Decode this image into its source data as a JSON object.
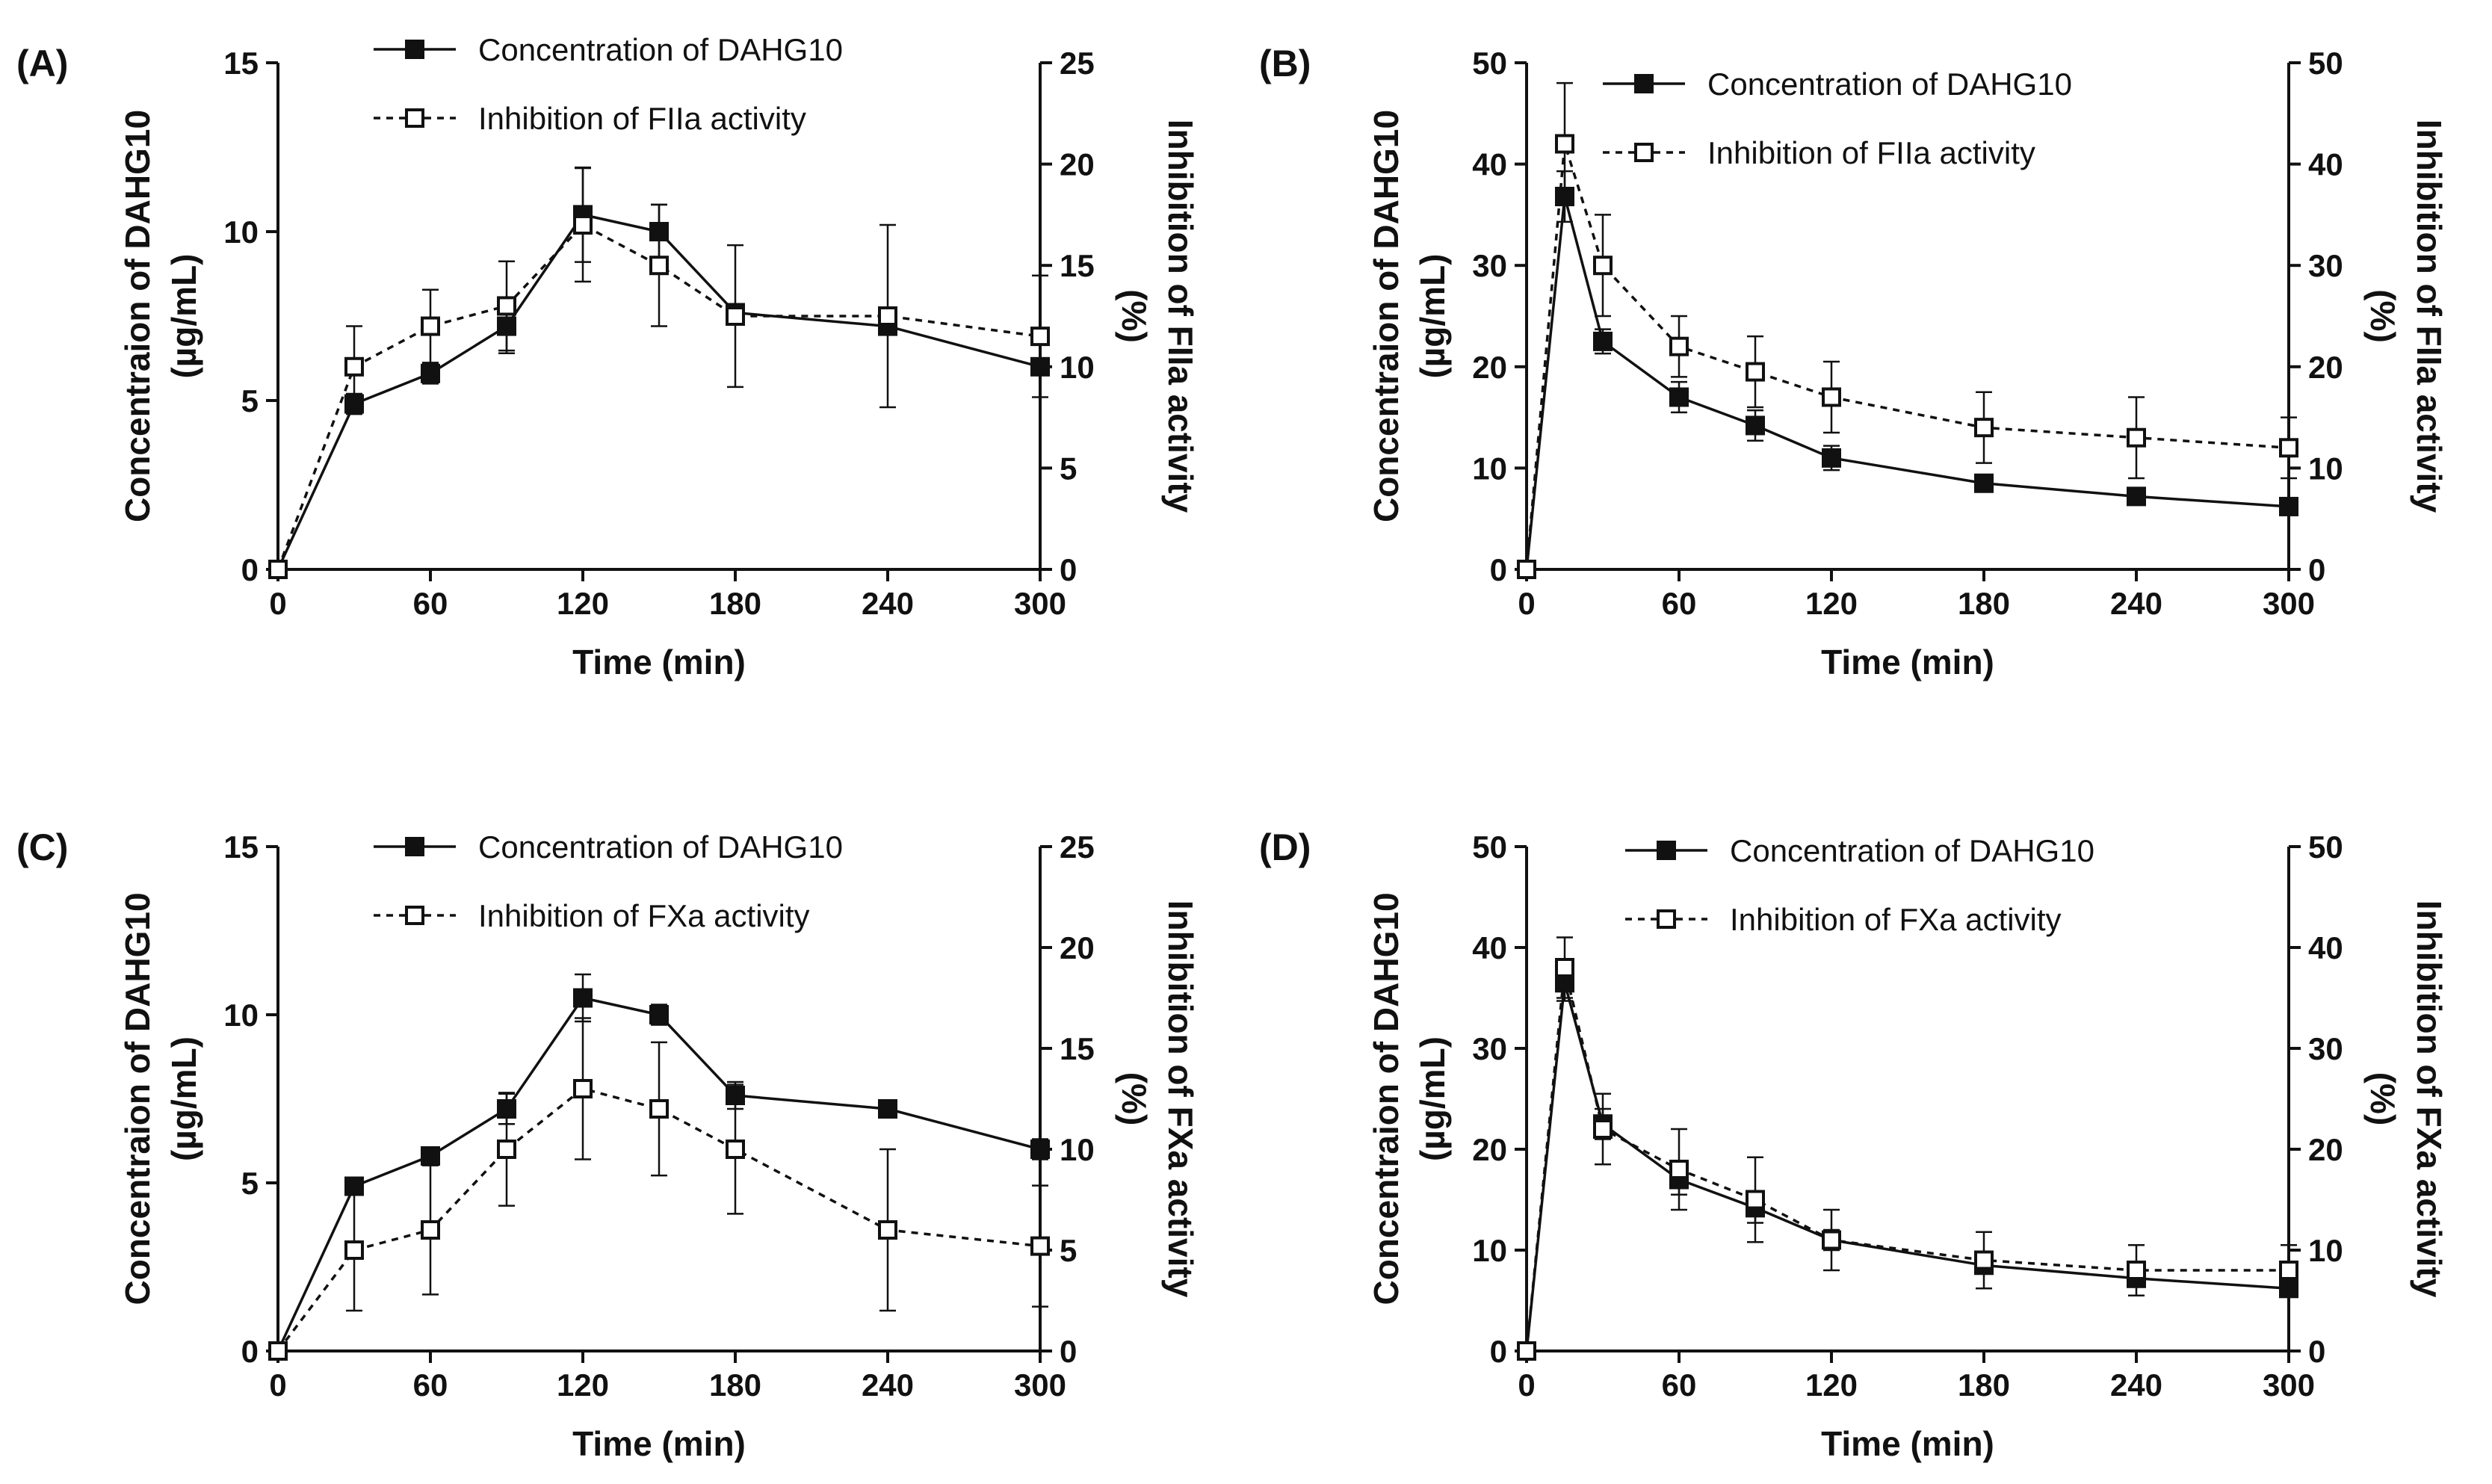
{
  "colors": {
    "line": "#111111",
    "open_marker_fill": "#ffffff",
    "background": "#ffffff"
  },
  "panels": [
    {
      "label": "(A)",
      "xlabel": "Time (min)",
      "ylabel_left": [
        "Concentraion of DAHG10",
        "(µg/mL)"
      ],
      "ylabel_right": [
        "Inhibition of FIIa activity",
        "(%)"
      ],
      "legend": [
        "Concentration of DAHG10",
        "Inhibition of FIIa activity"
      ]
    },
    {
      "label": "(B)",
      "xlabel": "Time (min)",
      "ylabel_left": [
        "Concentraion of DAHG10",
        "(µg/mL)"
      ],
      "ylabel_right": [
        "Inhibition of FIIa activity",
        "(%)"
      ],
      "legend": [
        "Concentration of DAHG10",
        "Inhibition of FIIa activity"
      ]
    },
    {
      "label": "(C)",
      "xlabel": "Time (min)",
      "ylabel_left": [
        "Concentraion of DAHG10",
        "(µg/mL)"
      ],
      "ylabel_right": [
        "Inhibition of FXa activity",
        "(%)"
      ],
      "legend": [
        "Concentration of DAHG10",
        "Inhibition of FXa activity"
      ]
    },
    {
      "label": "(D)",
      "xlabel": "Time (min)",
      "ylabel_left": [
        "Concentraion of DAHG10",
        "(µg/mL)"
      ],
      "ylabel_right": [
        "Inhibition of FXa activity",
        "(%)"
      ],
      "legend": [
        "Concentration of DAHG10",
        "Inhibition of FXa activity"
      ]
    }
  ],
  "chart_data": [
    {
      "type": "line",
      "panel": "(A)",
      "xlabel": "Time (min)",
      "xlim": [
        0,
        300
      ],
      "xticks": [
        0,
        60,
        120,
        180,
        240,
        300
      ],
      "ylabel": "Concentraion of DAHG10 (µg/mL)",
      "ylim": [
        0,
        15
      ],
      "yticks": [
        0,
        5,
        10,
        15
      ],
      "y2label": "Inhibition of FIIa activity (%)",
      "y2lim": [
        0,
        25
      ],
      "y2ticks": [
        0,
        5,
        10,
        15,
        20,
        25
      ],
      "legend_position": "top-center",
      "series": [
        {
          "name": "Concentration of DAHG10",
          "axis": "left",
          "marker": "filled-square",
          "line": "solid",
          "x": [
            0,
            30,
            60,
            90,
            120,
            150,
            180,
            240,
            300
          ],
          "y": [
            0,
            4.9,
            5.8,
            7.2,
            10.5,
            10.0,
            7.6,
            7.2,
            6.0
          ],
          "err": [
            0,
            0.3,
            0.3,
            0.8,
            1.4,
            0.8,
            0,
            0,
            0
          ]
        },
        {
          "name": "Inhibition of FIIa activity",
          "axis": "right",
          "marker": "open-square",
          "line": "dashed",
          "x": [
            0,
            30,
            60,
            90,
            120,
            150,
            180,
            240,
            300
          ],
          "y": [
            0,
            10.0,
            12.0,
            13.0,
            17.0,
            15.0,
            12.5,
            12.5,
            11.5
          ],
          "err": [
            0,
            2.0,
            1.8,
            2.2,
            2.8,
            3.0,
            3.5,
            4.5,
            3.0
          ]
        }
      ]
    },
    {
      "type": "line",
      "panel": "(B)",
      "xlabel": "Time (min)",
      "xlim": [
        0,
        300
      ],
      "xticks": [
        0,
        60,
        120,
        180,
        240,
        300
      ],
      "ylabel": "Concentraion of DAHG10 (µg/mL)",
      "ylim": [
        0,
        50
      ],
      "yticks": [
        0,
        10,
        20,
        30,
        40,
        50
      ],
      "y2label": "Inhibition of FIIa activity (%)",
      "y2lim": [
        0,
        50
      ],
      "y2ticks": [
        0,
        10,
        20,
        30,
        40,
        50
      ],
      "legend_position": "top-center",
      "series": [
        {
          "name": "Concentration of DAHG10",
          "axis": "left",
          "marker": "filled-square",
          "line": "solid",
          "x": [
            0,
            15,
            30,
            60,
            90,
            120,
            180,
            240,
            300
          ],
          "y": [
            0,
            36.8,
            22.5,
            17.0,
            14.2,
            11.0,
            8.5,
            7.2,
            6.2
          ],
          "err": [
            0,
            2.5,
            1.2,
            1.5,
            1.5,
            1.2,
            0.4,
            0.4,
            0.3
          ]
        },
        {
          "name": "Inhibition of FIIa activity",
          "axis": "right",
          "marker": "open-square",
          "line": "dashed",
          "x": [
            0,
            15,
            30,
            60,
            90,
            120,
            180,
            240,
            300
          ],
          "y": [
            0,
            42.0,
            30.0,
            22.0,
            19.5,
            17.0,
            14.0,
            13.0,
            12.0
          ],
          "err": [
            0,
            6.0,
            5.0,
            3.0,
            3.5,
            3.5,
            3.5,
            4.0,
            3.0
          ]
        }
      ]
    },
    {
      "type": "line",
      "panel": "(C)",
      "xlabel": "Time (min)",
      "xlim": [
        0,
        300
      ],
      "xticks": [
        0,
        60,
        120,
        180,
        240,
        300
      ],
      "ylabel": "Concentraion of DAHG10 (µg/mL)",
      "ylim": [
        0,
        15
      ],
      "yticks": [
        0,
        5,
        10,
        15
      ],
      "y2label": "Inhibition of FXa activity (%)",
      "y2lim": [
        0,
        25
      ],
      "y2ticks": [
        0,
        5,
        10,
        15,
        20,
        25
      ],
      "legend_position": "top-center",
      "series": [
        {
          "name": "Concentration of DAHG10",
          "axis": "left",
          "marker": "filled-square",
          "line": "solid",
          "x": [
            0,
            30,
            60,
            90,
            120,
            150,
            180,
            240,
            300
          ],
          "y": [
            0,
            4.9,
            5.8,
            7.2,
            10.5,
            10.0,
            7.6,
            7.2,
            6.0
          ],
          "err": [
            0,
            0.25,
            0.2,
            0.45,
            0.7,
            0.3,
            0.4,
            0.15,
            0.3
          ]
        },
        {
          "name": "Inhibition of FXa activity",
          "axis": "right",
          "marker": "open-square",
          "line": "dashed",
          "x": [
            0,
            30,
            60,
            90,
            120,
            150,
            180,
            240,
            300
          ],
          "y": [
            0,
            5.0,
            6.0,
            10.0,
            13.0,
            12.0,
            10.0,
            6.0,
            5.2
          ],
          "err": [
            0,
            3.0,
            3.2,
            2.8,
            3.5,
            3.3,
            3.2,
            4.0,
            3.0
          ]
        }
      ]
    },
    {
      "type": "line",
      "panel": "(D)",
      "xlabel": "Time (min)",
      "xlim": [
        0,
        300
      ],
      "xticks": [
        0,
        60,
        120,
        180,
        240,
        300
      ],
      "ylabel": "Concentraion of DAHG10 (µg/mL)",
      "ylim": [
        0,
        50
      ],
      "yticks": [
        0,
        10,
        20,
        30,
        40,
        50
      ],
      "y2label": "Inhibition of FXa activity (%)",
      "y2lim": [
        0,
        50
      ],
      "y2ticks": [
        0,
        10,
        20,
        30,
        40,
        50
      ],
      "legend_position": "top-center",
      "series": [
        {
          "name": "Concentration of DAHG10",
          "axis": "left",
          "marker": "filled-square",
          "line": "solid",
          "x": [
            0,
            15,
            30,
            60,
            90,
            120,
            180,
            240,
            300
          ],
          "y": [
            0,
            36.5,
            22.5,
            17.0,
            14.2,
            11.0,
            8.5,
            7.2,
            6.2
          ],
          "err": [
            0,
            1.8,
            1.5,
            1.5,
            1.5,
            1.0,
            0.6,
            0.6,
            0.5
          ]
        },
        {
          "name": "Inhibition of FXa activity",
          "axis": "right",
          "marker": "open-square",
          "line": "dashed",
          "x": [
            0,
            15,
            30,
            60,
            90,
            120,
            180,
            240,
            300
          ],
          "y": [
            0,
            38.0,
            22.0,
            18.0,
            15.0,
            11.0,
            9.0,
            8.0,
            8.0
          ],
          "err": [
            0,
            3.0,
            3.5,
            4.0,
            4.2,
            3.0,
            2.8,
            2.5,
            2.5
          ]
        }
      ]
    }
  ]
}
